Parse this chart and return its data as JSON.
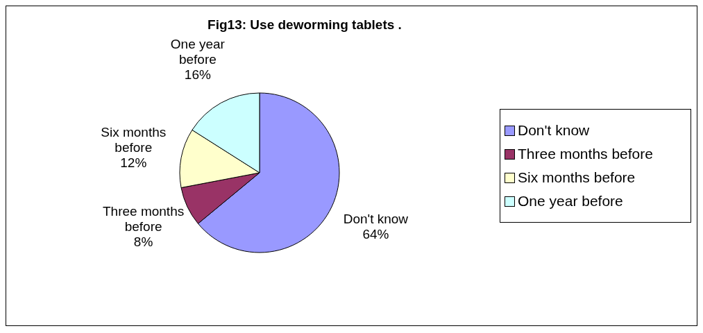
{
  "chart_data": {
    "type": "pie",
    "title": "Fig13: Use deworming tablets .",
    "categories": [
      "Don't know",
      "Three months before",
      "Six months before",
      "One year before"
    ],
    "values": [
      64,
      8,
      12,
      16
    ],
    "value_labels": [
      "64%",
      "8%",
      "12%",
      "16%"
    ],
    "colors": [
      "#9999ff",
      "#993366",
      "#ffffcc",
      "#ccffff"
    ],
    "legend": "right"
  }
}
